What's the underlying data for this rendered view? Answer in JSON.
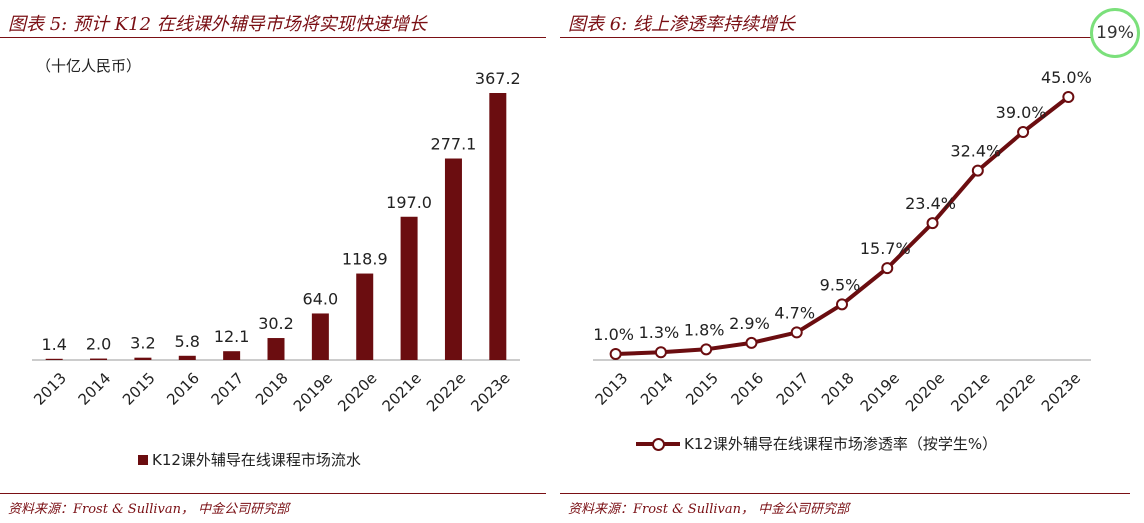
{
  "left": {
    "title": "图表 5:  预计 K12 在线课外辅导市场将实现快速增长",
    "unit": "（十亿人民币）",
    "legend": "K12课外辅导在线课程市场流水",
    "source": "资料来源：Frost & Sullivan，  中金公司研究部"
  },
  "right": {
    "title": "图表 6:  线上渗透率持续增长",
    "legend": "K12课外辅导在线课程市场渗透率（按学生%）",
    "source": "资料来源：Frost & Sullivan，  中金公司研究部"
  },
  "badge": "19%",
  "colors": {
    "bar": "#6b0d10",
    "line": "#6b0d10",
    "title": "#7a0f14",
    "badge_ring": "#7be07b"
  },
  "chart_data": [
    {
      "type": "bar",
      "categories": [
        "2013",
        "2014",
        "2015",
        "2016",
        "2017",
        "2018",
        "2019e",
        "2020e",
        "2021e",
        "2022e",
        "2023e"
      ],
      "series": [
        {
          "name": "K12课外辅导在线课程市场流水",
          "values": [
            1.4,
            2.0,
            3.2,
            5.8,
            12.1,
            30.2,
            64.0,
            118.9,
            197.0,
            277.1,
            367.2
          ]
        }
      ],
      "value_labels": [
        "1.4",
        "2.0",
        "3.2",
        "5.8",
        "12.1",
        "30.2",
        "64.0",
        "118.9",
        "197.0",
        "277.1",
        "367.2"
      ],
      "ylim": [
        0,
        367.2
      ],
      "grid": false,
      "legend_position": "bottom"
    },
    {
      "type": "line",
      "categories": [
        "2013",
        "2014",
        "2015",
        "2016",
        "2017",
        "2018",
        "2019e",
        "2020e",
        "2021e",
        "2022e",
        "2023e"
      ],
      "series": [
        {
          "name": "K12课外辅导在线课程市场渗透率（按学生%）",
          "values": [
            1.0,
            1.3,
            1.8,
            2.9,
            4.7,
            9.5,
            15.7,
            23.4,
            32.4,
            39.0,
            45.0
          ]
        }
      ],
      "value_labels": [
        "1.0%",
        "1.3%",
        "1.8%",
        "2.9%",
        "4.7%",
        "9.5%",
        "15.7%",
        "23.4%",
        "32.4%",
        "39.0%",
        "45.0%"
      ],
      "ylim": [
        0,
        45.0
      ],
      "grid": false,
      "legend_position": "bottom"
    }
  ]
}
